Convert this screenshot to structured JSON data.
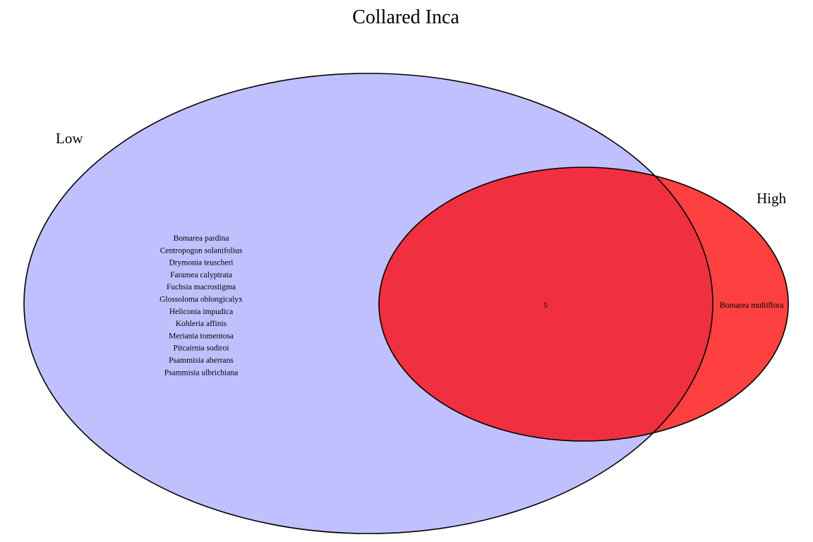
{
  "title": "Collared Inca",
  "sets": {
    "low": {
      "label": "Low",
      "color": "#c0c0ff",
      "only_members": [
        "Bomarea pardina",
        "Centropogon solanifolius",
        "Drymonia teuscheri",
        "Faramea calyptrata",
        "Fuchsia macrostigma",
        "Glossoloma oblongicalyx",
        "Heliconia impudica",
        "Kohleria affinis",
        "Meriania tomentosa",
        "Pitcairnia sodiroi",
        "Psammisia aberrans",
        "Psammisia ulbrichiana"
      ]
    },
    "high": {
      "label": "High",
      "color": "#ff4040",
      "only_members": [
        "Bomarea multiflora"
      ]
    }
  },
  "intersection": {
    "label": "5",
    "color": "#f03040"
  }
}
